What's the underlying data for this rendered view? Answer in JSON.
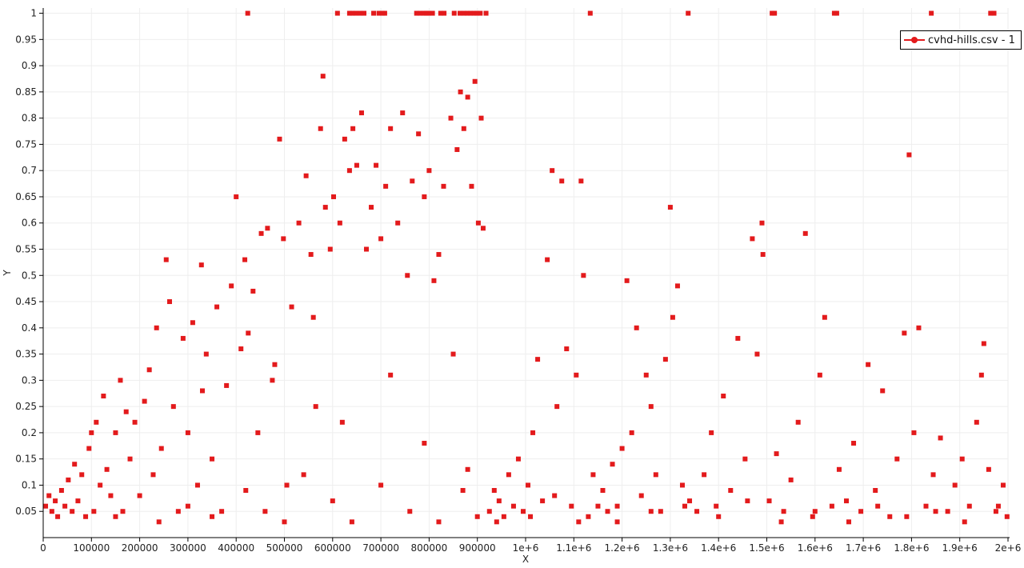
{
  "chart_data": {
    "type": "scatter",
    "title": "",
    "xlabel": "X",
    "ylabel": "Y",
    "xlim": [
      0,
      2000000
    ],
    "ylim": [
      0,
      1.01
    ],
    "grid": true,
    "legend_position": "top-right",
    "x_ticks": [
      "0",
      "100000",
      "200000",
      "300000",
      "400000",
      "500000",
      "600000",
      "700000",
      "800000",
      "900000",
      "1e+6",
      "1.1e+6",
      "1.2e+6",
      "1.3e+6",
      "1.4e+6",
      "1.5e+6",
      "1.6e+6",
      "1.7e+6",
      "1.8e+6",
      "1.9e+6",
      "2e+6"
    ],
    "y_ticks": [
      "0.05",
      "0.1",
      "0.15",
      "0.2",
      "0.25",
      "0.3",
      "0.35",
      "0.4",
      "0.45",
      "0.5",
      "0.55",
      "0.6",
      "0.65",
      "0.7",
      "0.75",
      "0.8",
      "0.85",
      "0.9",
      "0.95",
      "1"
    ],
    "series": [
      {
        "name": "cvhd-hills.csv - 1",
        "color": "#e31a1c",
        "marker": "square",
        "points": [
          [
            424000,
            1
          ],
          [
            610000,
            1
          ],
          [
            635000,
            1
          ],
          [
            641000,
            1
          ],
          [
            648000,
            1
          ],
          [
            657000,
            1
          ],
          [
            665000,
            1
          ],
          [
            685000,
            1
          ],
          [
            696000,
            1
          ],
          [
            703000,
            1
          ],
          [
            708000,
            1
          ],
          [
            774000,
            1
          ],
          [
            781000,
            1
          ],
          [
            789000,
            1
          ],
          [
            794000,
            1
          ],
          [
            799000,
            1
          ],
          [
            807000,
            1
          ],
          [
            824000,
            1
          ],
          [
            831000,
            1
          ],
          [
            852000,
            1
          ],
          [
            864000,
            1
          ],
          [
            872000,
            1
          ],
          [
            879000,
            1
          ],
          [
            886000,
            1
          ],
          [
            893000,
            1
          ],
          [
            899000,
            1
          ],
          [
            906000,
            1
          ],
          [
            918000,
            1
          ],
          [
            1134000,
            1
          ],
          [
            1337000,
            1
          ],
          [
            1511000,
            1
          ],
          [
            1516000,
            1
          ],
          [
            1640000,
            1
          ],
          [
            1645000,
            1
          ],
          [
            1841000,
            1
          ],
          [
            1964000,
            1
          ],
          [
            1971000,
            1
          ],
          [
            5000,
            0.06
          ],
          [
            12000,
            0.08
          ],
          [
            18000,
            0.05
          ],
          [
            25000,
            0.07
          ],
          [
            30000,
            0.04
          ],
          [
            38000,
            0.09
          ],
          [
            45000,
            0.06
          ],
          [
            52000,
            0.11
          ],
          [
            60000,
            0.05
          ],
          [
            65000,
            0.14
          ],
          [
            72000,
            0.07
          ],
          [
            80000,
            0.12
          ],
          [
            88000,
            0.04
          ],
          [
            95000,
            0.17
          ],
          [
            100000,
            0.2
          ],
          [
            105000,
            0.05
          ],
          [
            110000,
            0.22
          ],
          [
            118000,
            0.1
          ],
          [
            125000,
            0.27
          ],
          [
            132000,
            0.13
          ],
          [
            140000,
            0.08
          ],
          [
            150000,
            0.2
          ],
          [
            160000,
            0.3
          ],
          [
            165000,
            0.05
          ],
          [
            172000,
            0.24
          ],
          [
            180000,
            0.15
          ],
          [
            190000,
            0.22
          ],
          [
            200000,
            0.08
          ],
          [
            210000,
            0.26
          ],
          [
            220000,
            0.32
          ],
          [
            228000,
            0.12
          ],
          [
            235000,
            0.4
          ],
          [
            245000,
            0.17
          ],
          [
            255000,
            0.53
          ],
          [
            262000,
            0.45
          ],
          [
            270000,
            0.25
          ],
          [
            280000,
            0.05
          ],
          [
            290000,
            0.38
          ],
          [
            300000,
            0.2
          ],
          [
            310000,
            0.41
          ],
          [
            320000,
            0.1
          ],
          [
            328000,
            0.52
          ],
          [
            338000,
            0.35
          ],
          [
            350000,
            0.15
          ],
          [
            360000,
            0.44
          ],
          [
            370000,
            0.05
          ],
          [
            380000,
            0.29
          ],
          [
            390000,
            0.48
          ],
          [
            400000,
            0.65
          ],
          [
            410000,
            0.36
          ],
          [
            418000,
            0.53
          ],
          [
            425000,
            0.39
          ],
          [
            435000,
            0.47
          ],
          [
            445000,
            0.2
          ],
          [
            452000,
            0.58
          ],
          [
            465000,
            0.59
          ],
          [
            475000,
            0.3
          ],
          [
            490000,
            0.76
          ],
          [
            498000,
            0.57
          ],
          [
            505000,
            0.1
          ],
          [
            515000,
            0.44
          ],
          [
            530000,
            0.6
          ],
          [
            545000,
            0.69
          ],
          [
            555000,
            0.54
          ],
          [
            565000,
            0.25
          ],
          [
            575000,
            0.78
          ],
          [
            580000,
            0.88
          ],
          [
            585000,
            0.63
          ],
          [
            595000,
            0.55
          ],
          [
            602000,
            0.65
          ],
          [
            615000,
            0.6
          ],
          [
            625000,
            0.76
          ],
          [
            635000,
            0.7
          ],
          [
            642000,
            0.78
          ],
          [
            650000,
            0.71
          ],
          [
            660000,
            0.81
          ],
          [
            670000,
            0.55
          ],
          [
            680000,
            0.63
          ],
          [
            690000,
            0.71
          ],
          [
            700000,
            0.57
          ],
          [
            710000,
            0.67
          ],
          [
            720000,
            0.78
          ],
          [
            735000,
            0.6
          ],
          [
            745000,
            0.81
          ],
          [
            755000,
            0.5
          ],
          [
            765000,
            0.68
          ],
          [
            778000,
            0.77
          ],
          [
            790000,
            0.65
          ],
          [
            800000,
            0.7
          ],
          [
            810000,
            0.49
          ],
          [
            820000,
            0.54
          ],
          [
            830000,
            0.67
          ],
          [
            845000,
            0.8
          ],
          [
            858000,
            0.74
          ],
          [
            865000,
            0.85
          ],
          [
            872000,
            0.78
          ],
          [
            880000,
            0.84
          ],
          [
            888000,
            0.67
          ],
          [
            895000,
            0.87
          ],
          [
            902000,
            0.6
          ],
          [
            908000,
            0.8
          ],
          [
            912000,
            0.59
          ],
          [
            150000,
            0.04
          ],
          [
            240000,
            0.03
          ],
          [
            300000,
            0.06
          ],
          [
            350000,
            0.04
          ],
          [
            420000,
            0.09
          ],
          [
            460000,
            0.05
          ],
          [
            500000,
            0.03
          ],
          [
            540000,
            0.12
          ],
          [
            600000,
            0.07
          ],
          [
            640000,
            0.03
          ],
          [
            700000,
            0.1
          ],
          [
            760000,
            0.05
          ],
          [
            820000,
            0.03
          ],
          [
            870000,
            0.09
          ],
          [
            900000,
            0.04
          ],
          [
            330000,
            0.28
          ],
          [
            480000,
            0.33
          ],
          [
            560000,
            0.42
          ],
          [
            620000,
            0.22
          ],
          [
            720000,
            0.31
          ],
          [
            790000,
            0.18
          ],
          [
            850000,
            0.35
          ],
          [
            880000,
            0.13
          ],
          [
            925000,
            0.05
          ],
          [
            935000,
            0.09
          ],
          [
            945000,
            0.07
          ],
          [
            955000,
            0.04
          ],
          [
            965000,
            0.12
          ],
          [
            975000,
            0.06
          ],
          [
            985000,
            0.15
          ],
          [
            995000,
            0.05
          ],
          [
            1005000,
            0.1
          ],
          [
            1015000,
            0.2
          ],
          [
            1025000,
            0.34
          ],
          [
            1035000,
            0.07
          ],
          [
            1045000,
            0.53
          ],
          [
            1055000,
            0.7
          ],
          [
            1065000,
            0.25
          ],
          [
            1075000,
            0.68
          ],
          [
            1085000,
            0.36
          ],
          [
            1095000,
            0.06
          ],
          [
            1105000,
            0.31
          ],
          [
            1115000,
            0.68
          ],
          [
            1120000,
            0.5
          ],
          [
            1130000,
            0.04
          ],
          [
            1140000,
            0.12
          ],
          [
            1150000,
            0.06
          ],
          [
            1160000,
            0.09
          ],
          [
            1170000,
            0.05
          ],
          [
            1180000,
            0.14
          ],
          [
            1190000,
            0.06
          ],
          [
            1200000,
            0.17
          ],
          [
            1210000,
            0.49
          ],
          [
            1220000,
            0.2
          ],
          [
            1230000,
            0.4
          ],
          [
            1240000,
            0.08
          ],
          [
            1250000,
            0.31
          ],
          [
            1260000,
            0.25
          ],
          [
            1270000,
            0.12
          ],
          [
            1280000,
            0.05
          ],
          [
            1290000,
            0.34
          ],
          [
            1300000,
            0.63
          ],
          [
            1305000,
            0.42
          ],
          [
            1315000,
            0.48
          ],
          [
            1325000,
            0.1
          ],
          [
            1340000,
            0.07
          ],
          [
            1355000,
            0.05
          ],
          [
            1370000,
            0.12
          ],
          [
            1385000,
            0.2
          ],
          [
            1395000,
            0.06
          ],
          [
            1410000,
            0.27
          ],
          [
            1425000,
            0.09
          ],
          [
            1440000,
            0.38
          ],
          [
            1455000,
            0.15
          ],
          [
            1470000,
            0.57
          ],
          [
            1480000,
            0.35
          ],
          [
            1490000,
            0.6
          ],
          [
            1492000,
            0.54
          ],
          [
            1505000,
            0.07
          ],
          [
            1520000,
            0.16
          ],
          [
            1535000,
            0.05
          ],
          [
            1550000,
            0.11
          ],
          [
            1565000,
            0.22
          ],
          [
            1580000,
            0.58
          ],
          [
            1595000,
            0.04
          ],
          [
            1610000,
            0.31
          ],
          [
            1620000,
            0.42
          ],
          [
            1635000,
            0.06
          ],
          [
            1650000,
            0.13
          ],
          [
            1665000,
            0.07
          ],
          [
            1680000,
            0.18
          ],
          [
            1695000,
            0.05
          ],
          [
            1710000,
            0.33
          ],
          [
            1725000,
            0.09
          ],
          [
            1740000,
            0.28
          ],
          [
            1755000,
            0.04
          ],
          [
            1770000,
            0.15
          ],
          [
            1785000,
            0.39
          ],
          [
            1795000,
            0.73
          ],
          [
            1805000,
            0.2
          ],
          [
            1815000,
            0.4
          ],
          [
            1830000,
            0.06
          ],
          [
            1845000,
            0.12
          ],
          [
            1860000,
            0.19
          ],
          [
            1875000,
            0.05
          ],
          [
            1890000,
            0.1
          ],
          [
            1905000,
            0.15
          ],
          [
            1920000,
            0.06
          ],
          [
            1935000,
            0.22
          ],
          [
            1945000,
            0.31
          ],
          [
            1950000,
            0.37
          ],
          [
            1960000,
            0.13
          ],
          [
            1975000,
            0.05
          ],
          [
            1990000,
            0.1
          ],
          [
            1998000,
            0.04
          ],
          [
            940000,
            0.03
          ],
          [
            1010000,
            0.04
          ],
          [
            1060000,
            0.08
          ],
          [
            1110000,
            0.03
          ],
          [
            1190000,
            0.03
          ],
          [
            1260000,
            0.05
          ],
          [
            1330000,
            0.06
          ],
          [
            1400000,
            0.04
          ],
          [
            1460000,
            0.07
          ],
          [
            1530000,
            0.03
          ],
          [
            1600000,
            0.05
          ],
          [
            1670000,
            0.03
          ],
          [
            1730000,
            0.06
          ],
          [
            1790000,
            0.04
          ],
          [
            1850000,
            0.05
          ],
          [
            1910000,
            0.03
          ],
          [
            1980000,
            0.06
          ]
        ]
      }
    ]
  }
}
